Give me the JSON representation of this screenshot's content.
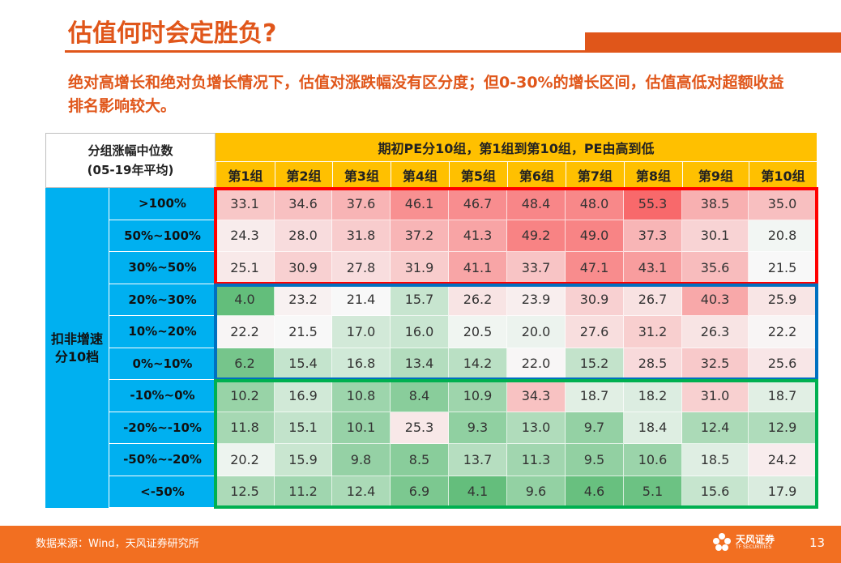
{
  "title": "估值何时会定胜负?",
  "subtitle": "绝对高增长和绝对负增长情况下，估值对涨跌幅没有区分度；但0-30%的增长区间，估值高低对超额收益排名影响较大。",
  "chart_data": {
    "type": "heatmap",
    "corner_label_line1": "分组涨幅中位数",
    "corner_label_line2": "(05-19年平均)",
    "column_header": "期初PE分10组，第1组到第10组，PE由高到低",
    "row_header": "扣非增速分10档",
    "columns": [
      "第1组",
      "第2组",
      "第3组",
      "第4组",
      "第5组",
      "第6组",
      "第7组",
      "第8组",
      "第9组",
      "第10组"
    ],
    "rows": [
      ">100%",
      "50%~100%",
      "30%~50%",
      "20%~30%",
      "10%~20%",
      "0%~10%",
      "-10%~0%",
      "-20%~-10%",
      "-50%~-20%",
      "<-50%"
    ],
    "values": [
      [
        33.1,
        34.6,
        37.6,
        46.1,
        46.7,
        48.4,
        48.0,
        55.3,
        38.5,
        35.0
      ],
      [
        24.3,
        28.0,
        31.8,
        37.2,
        41.3,
        49.2,
        49.0,
        37.3,
        30.1,
        20.8
      ],
      [
        25.1,
        30.9,
        27.8,
        31.9,
        41.1,
        33.7,
        47.1,
        43.1,
        35.6,
        21.5
      ],
      [
        4.0,
        23.2,
        21.4,
        15.7,
        26.2,
        23.9,
        30.9,
        26.7,
        40.3,
        25.9
      ],
      [
        22.2,
        21.5,
        17.0,
        16.0,
        20.5,
        20.0,
        27.6,
        31.2,
        26.3,
        22.2
      ],
      [
        6.2,
        15.4,
        16.8,
        13.4,
        14.2,
        22.0,
        15.2,
        28.5,
        32.5,
        25.6
      ],
      [
        10.2,
        16.9,
        10.8,
        8.4,
        10.9,
        34.3,
        18.7,
        18.2,
        31.0,
        18.7
      ],
      [
        11.8,
        15.1,
        10.1,
        25.3,
        9.3,
        13.0,
        9.7,
        18.4,
        12.4,
        12.9
      ],
      [
        20.2,
        15.9,
        9.8,
        8.5,
        13.7,
        11.3,
        9.5,
        10.6,
        18.5,
        24.2
      ],
      [
        12.5,
        11.2,
        12.4,
        6.9,
        4.1,
        9.6,
        4.6,
        5.1,
        15.6,
        17.9
      ]
    ],
    "color_scale": {
      "low": "#63be7b",
      "mid": "#f8f8f8",
      "high": "#f8696b"
    },
    "highlight_boxes": [
      {
        "rows": [
          0,
          2
        ],
        "color": "#ff0000"
      },
      {
        "rows": [
          3,
          5
        ],
        "color": "#0070c0"
      },
      {
        "rows": [
          6,
          9
        ],
        "color": "#00b050"
      }
    ]
  },
  "footer": {
    "source": "数据来源：Wind，天风证券研究所",
    "logo_text": "天风证券",
    "logo_sub": "TF SECURITIES",
    "page_number": "13"
  }
}
